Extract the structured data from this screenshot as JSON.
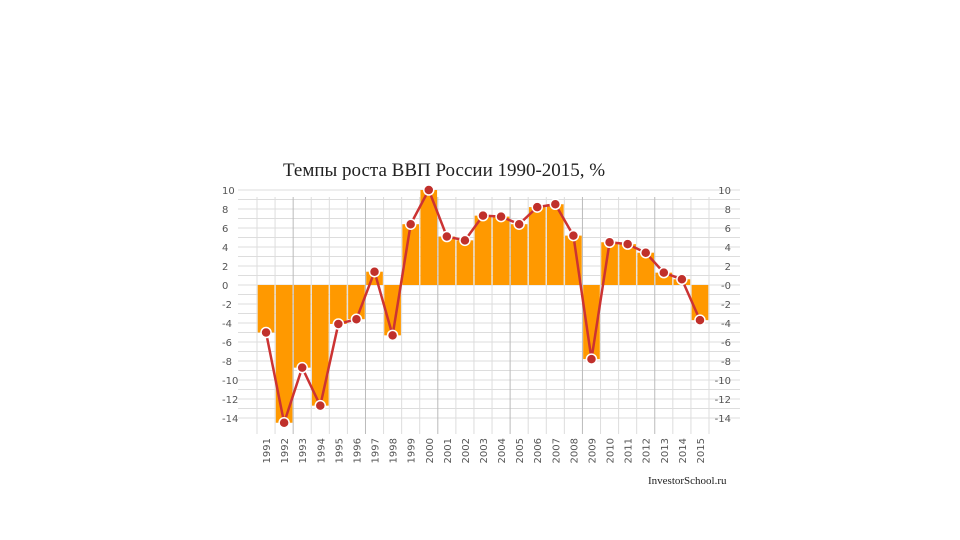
{
  "chart_data": {
    "type": "bar",
    "title": "Темпы роста ВВП России 1990-2015, %",
    "watermark": "InvestorSchool.ru",
    "categories": [
      "1991",
      "1992",
      "1993",
      "1994",
      "1995",
      "1996",
      "1997",
      "1998",
      "1999",
      "2000",
      "2001",
      "2002",
      "2003",
      "2004",
      "2005",
      "2006",
      "2007",
      "2008",
      "2009",
      "2010",
      "2011",
      "2012",
      "2013",
      "2014",
      "2015"
    ],
    "values": [
      -5,
      -14.5,
      -8.7,
      -12.7,
      -4.1,
      -3.6,
      1.4,
      -5.3,
      6.4,
      10,
      5.1,
      4.7,
      7.3,
      7.2,
      6.4,
      8.2,
      8.5,
      5.2,
      -7.8,
      4.5,
      4.3,
      3.4,
      1.3,
      0.6,
      -3.7
    ],
    "line_series": {
      "values": [
        -5,
        -14.5,
        -8.7,
        -12.7,
        -4.1,
        -3.6,
        1.4,
        -5.3,
        6.4,
        10,
        5.1,
        4.7,
        7.3,
        7.2,
        6.4,
        8.2,
        8.5,
        5.2,
        -7.8,
        4.5,
        4.3,
        3.4,
        1.3,
        0.6,
        -3.7
      ]
    },
    "y_ticks_left": [
      "10",
      "8",
      "6",
      "4",
      "2",
      "0",
      "-2",
      "-4",
      "-6",
      "-8",
      "-10",
      "-12",
      "-14"
    ],
    "y_ticks_right": [
      "10",
      "8",
      "6",
      "4",
      "2",
      "-0",
      "-2",
      "-4",
      "-6",
      "-8",
      "-10",
      "-12",
      "-14"
    ],
    "ylim": [
      -15,
      11
    ],
    "grid": true,
    "colors": {
      "bar": "#ff9900",
      "line": "#cc3333",
      "marker": "#c0302b",
      "marker_stroke": "#ffffff",
      "grid": "#dddddd",
      "gridDark": "#bbbbbb"
    }
  }
}
